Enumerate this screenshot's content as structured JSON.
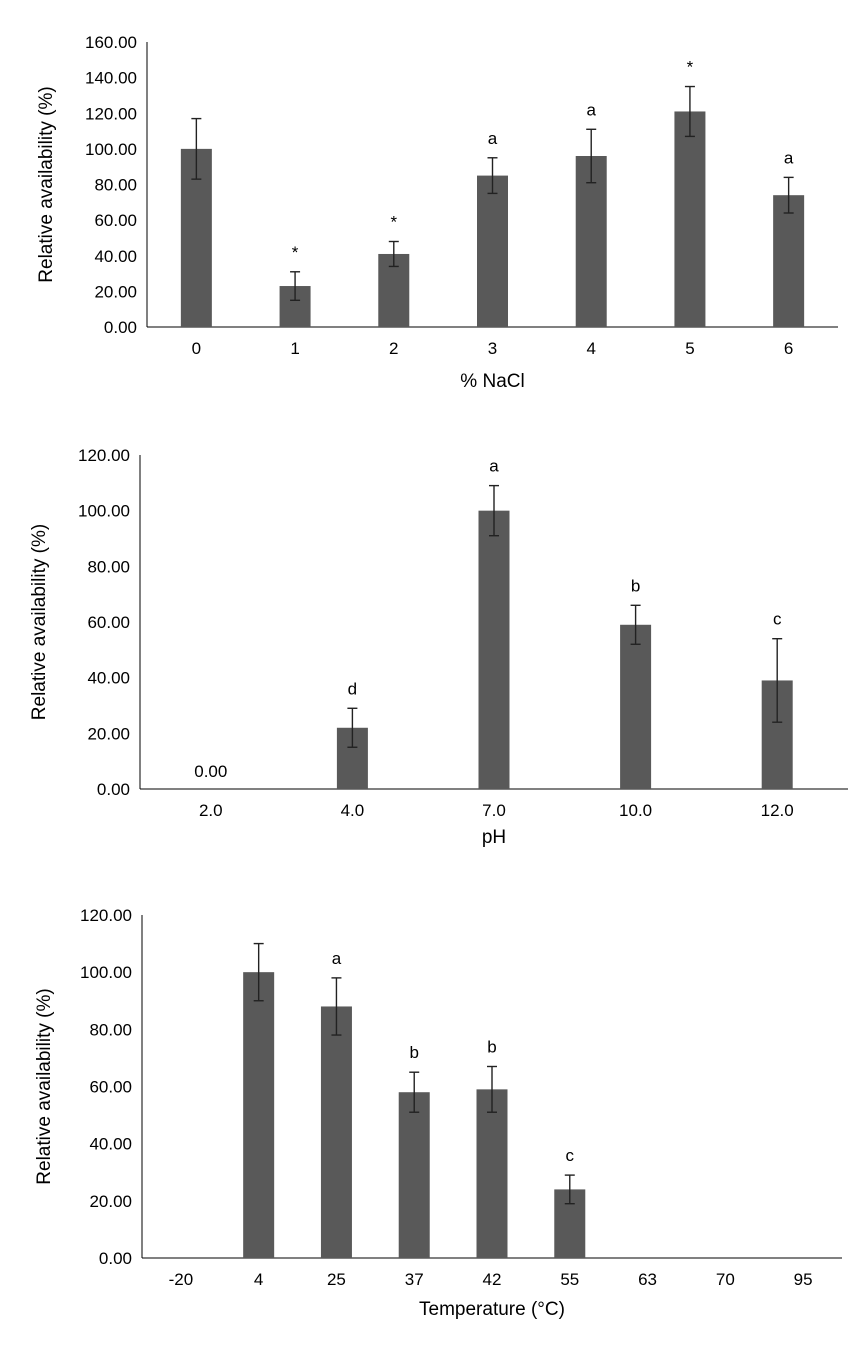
{
  "chart_data": [
    {
      "type": "bar",
      "title": "",
      "xlabel": "% NaCl",
      "ylabel": "Relative availability (%)",
      "categories": [
        "0",
        "1",
        "2",
        "3",
        "4",
        "5",
        "6"
      ],
      "values": [
        100,
        23,
        41,
        85,
        96,
        121,
        74
      ],
      "errors": [
        17,
        8,
        7,
        10,
        15,
        14,
        10
      ],
      "annotations": [
        "",
        "*",
        "*",
        "a",
        "a",
        "*",
        "a"
      ],
      "value_labels": [
        "",
        "",
        "",
        "",
        "",
        "",
        ""
      ],
      "ylim": [
        0,
        160
      ],
      "yticks": [
        "0.00",
        "20.00",
        "40.00",
        "60.00",
        "80.00",
        "100.00",
        "120.00",
        "140.00",
        "160.00"
      ],
      "bar_color": "#595959",
      "grid": false
    },
    {
      "type": "bar",
      "title": "",
      "xlabel": "pH",
      "ylabel": "Relative availability (%)",
      "categories": [
        "2.0",
        "4.0",
        "7.0",
        "10.0",
        "12.0"
      ],
      "values": [
        0,
        22,
        100,
        59,
        39
      ],
      "errors": [
        0,
        7,
        9,
        7,
        15
      ],
      "annotations": [
        "",
        "d",
        "a",
        "b",
        "c"
      ],
      "value_labels": [
        "0.00",
        "",
        "",
        "",
        ""
      ],
      "ylim": [
        0,
        120
      ],
      "yticks": [
        "0.00",
        "20.00",
        "40.00",
        "60.00",
        "80.00",
        "100.00",
        "120.00"
      ],
      "bar_color": "#595959",
      "grid": false
    },
    {
      "type": "bar",
      "title": "",
      "xlabel": "Temperature (°C)",
      "ylabel": "Relative availability (%)",
      "categories": [
        "-20",
        "4",
        "25",
        "37",
        "42",
        "55",
        "63",
        "70",
        "95"
      ],
      "values": [
        0,
        100,
        88,
        58,
        59,
        24,
        0,
        0,
        0
      ],
      "errors": [
        0,
        10,
        10,
        7,
        8,
        5,
        0,
        0,
        0
      ],
      "annotations": [
        "",
        "",
        "a",
        "b",
        "b",
        "c",
        "",
        "",
        ""
      ],
      "value_labels": [
        "",
        "",
        "",
        "",
        "",
        "",
        "",
        "",
        ""
      ],
      "ylim": [
        0,
        120
      ],
      "yticks": [
        "0.00",
        "20.00",
        "40.00",
        "60.00",
        "80.00",
        "100.00",
        "120.00"
      ],
      "bar_color": "#595959",
      "grid": false
    }
  ]
}
